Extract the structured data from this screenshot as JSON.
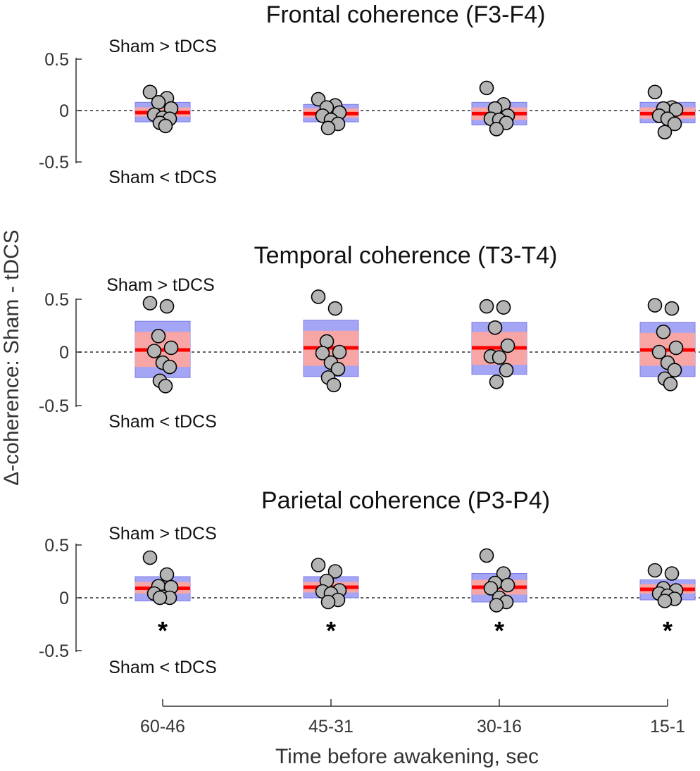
{
  "chart_data": {
    "type": "box-scatter",
    "ylabel": "Δ-coherence: Sham - tDCS",
    "xlabel": "Time before awakening, sec",
    "categories": [
      "60-46",
      "45-31",
      "30-16",
      "15-1"
    ],
    "ylim": [
      -0.5,
      0.5
    ],
    "yticks": [
      "0.5",
      "0",
      "-0.5"
    ],
    "annotation_above": "Sham > tDCS",
    "annotation_below": "Sham < tDCS",
    "colors": {
      "outer_box": "#a5a5f5",
      "inner_box": "#f7a5a5",
      "median": "#ff0000",
      "point_fill": "#b4b4b4",
      "point_edge": "#000000",
      "axis": "#333333"
    },
    "panels": [
      {
        "title": "Frontal coherence (F3-F4)",
        "groups": [
          {
            "category": "60-46",
            "median": -0.02,
            "inner": [
              -0.06,
              0.03
            ],
            "outer": [
              -0.11,
              0.08
            ],
            "points": [
              0.18,
              0.12,
              0.08,
              0.02,
              -0.04,
              -0.07,
              -0.08,
              -0.12,
              -0.15
            ],
            "significant": false
          },
          {
            "category": "45-31",
            "median": -0.03,
            "inner": [
              -0.07,
              0.02
            ],
            "outer": [
              -0.11,
              0.06
            ],
            "points": [
              0.11,
              0.05,
              0.03,
              -0.02,
              -0.05,
              -0.09,
              -0.13,
              -0.17
            ],
            "significant": false
          },
          {
            "category": "30-16",
            "median": -0.03,
            "inner": [
              -0.09,
              0.03
            ],
            "outer": [
              -0.14,
              0.08
            ],
            "points": [
              0.22,
              0.06,
              0.02,
              -0.05,
              -0.08,
              -0.09,
              -0.12,
              -0.18
            ],
            "significant": false
          },
          {
            "category": "15-1",
            "median": -0.03,
            "inner": [
              -0.08,
              0.03
            ],
            "outer": [
              -0.12,
              0.08
            ],
            "points": [
              0.18,
              0.03,
              0.02,
              0.01,
              -0.05,
              -0.08,
              -0.13,
              -0.21
            ],
            "significant": false
          }
        ]
      },
      {
        "title": "Temporal coherence (T3-T4)",
        "groups": [
          {
            "category": "60-46",
            "median": 0.02,
            "inner": [
              -0.14,
              0.19
            ],
            "outer": [
              -0.24,
              0.29
            ],
            "points": [
              0.46,
              0.43,
              0.15,
              0.04,
              0.01,
              -0.1,
              -0.14,
              -0.27,
              -0.32
            ],
            "significant": false
          },
          {
            "category": "45-31",
            "median": 0.04,
            "inner": [
              -0.13,
              0.2
            ],
            "outer": [
              -0.23,
              0.3
            ],
            "points": [
              0.52,
              0.41,
              0.1,
              0.0,
              -0.01,
              -0.1,
              -0.16,
              -0.24,
              -0.31
            ],
            "significant": false
          },
          {
            "category": "30-16",
            "median": 0.04,
            "inner": [
              -0.12,
              0.19
            ],
            "outer": [
              -0.21,
              0.28
            ],
            "points": [
              0.43,
              0.42,
              0.23,
              0.06,
              -0.04,
              -0.05,
              -0.17,
              -0.28
            ],
            "significant": false
          },
          {
            "category": "15-1",
            "median": 0.02,
            "inner": [
              -0.13,
              0.18
            ],
            "outer": [
              -0.23,
              0.28
            ],
            "points": [
              0.44,
              0.41,
              0.19,
              0.04,
              0.0,
              -0.1,
              -0.17,
              -0.25,
              -0.3
            ],
            "significant": false
          }
        ]
      },
      {
        "title": "Parietal coherence (P3-P4)",
        "groups": [
          {
            "category": "60-46",
            "median": 0.09,
            "inner": [
              0.04,
              0.15
            ],
            "outer": [
              -0.03,
              0.2
            ],
            "points": [
              0.38,
              0.22,
              0.11,
              0.1,
              0.04,
              0.01,
              0.0,
              0.0
            ],
            "significant": true
          },
          {
            "category": "45-31",
            "median": 0.1,
            "inner": [
              0.05,
              0.15
            ],
            "outer": [
              0.0,
              0.2
            ],
            "points": [
              0.31,
              0.25,
              0.16,
              0.07,
              0.06,
              0.04,
              -0.02,
              -0.04
            ],
            "significant": true
          },
          {
            "category": "30-16",
            "median": 0.1,
            "inner": [
              0.03,
              0.17
            ],
            "outer": [
              -0.04,
              0.23
            ],
            "points": [
              0.4,
              0.23,
              0.14,
              0.12,
              0.09,
              0.0,
              -0.04,
              -0.07
            ],
            "significant": true
          },
          {
            "category": "15-1",
            "median": 0.08,
            "inner": [
              0.04,
              0.13
            ],
            "outer": [
              -0.02,
              0.17
            ],
            "points": [
              0.26,
              0.23,
              0.09,
              0.07,
              0.04,
              0.02,
              -0.01,
              -0.03
            ],
            "significant": true
          }
        ]
      }
    ]
  }
}
